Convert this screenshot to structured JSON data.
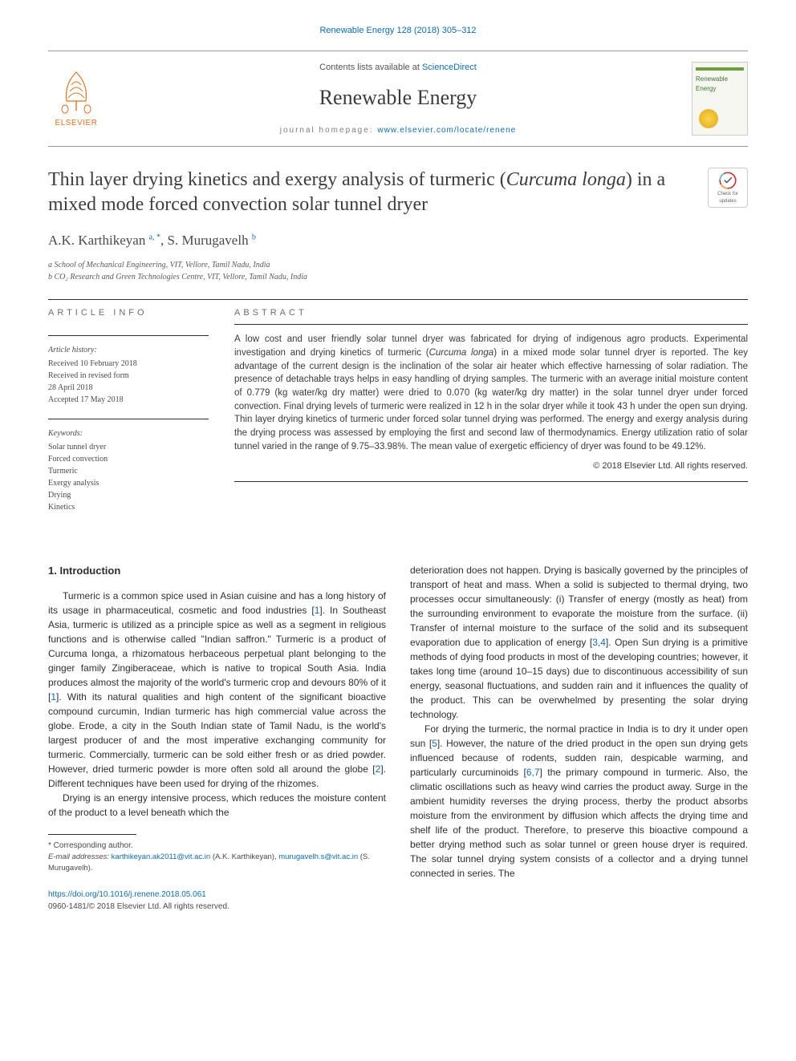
{
  "typography": {
    "body_font": "Georgia, 'Times New Roman', serif",
    "sans_font": "Arial, sans-serif",
    "title_fontsize_pt": 24,
    "journal_fontsize_pt": 26,
    "abstract_fontsize_pt": 11.5,
    "body_fontsize_pt": 12
  },
  "colors": {
    "link": "#0b6db7",
    "text": "#2e2e2e",
    "muted": "#6d6d6d",
    "publisher_orange": "#e8711c",
    "divider": "#2e2e2e",
    "background": "#ffffff"
  },
  "citation": "Renewable Energy 128 (2018) 305–312",
  "header": {
    "contents_text": "Contents lists available at ",
    "contents_link": "ScienceDirect",
    "journal": "Renewable Energy",
    "homepage_label": "journal homepage: ",
    "homepage_url": "www.elsevier.com/locate/renene",
    "publisher": "ELSEVIER",
    "cover_title": "Renewable Energy"
  },
  "crossmark": {
    "line1": "Check for",
    "line2": "updates"
  },
  "article": {
    "title_part1": "Thin layer drying kinetics and exergy analysis of turmeric (",
    "title_italic": "Curcuma longa",
    "title_part2": ") in a mixed mode forced convection solar tunnel dryer",
    "authors_html": "A.K. Karthikeyan <sup>a, *</sup>, S. Murugavelh <sup>b</sup>",
    "affiliations": [
      "a School of Mechanical Engineering, VIT, Vellore, Tamil Nadu, India",
      "b CO₂ Research and Green Technologies Centre, VIT, Vellore, Tamil Nadu, India"
    ]
  },
  "info": {
    "heading": "ARTICLE INFO",
    "history_head": "Article history:",
    "history": [
      "Received 10 February 2018",
      "Received in revised form",
      "28 April 2018",
      "Accepted 17 May 2018"
    ],
    "keywords_head": "Keywords:",
    "keywords": [
      "Solar tunnel dryer",
      "Forced convection",
      "Turmeric",
      "Exergy analysis",
      "Drying",
      "Kinetics"
    ]
  },
  "abstract": {
    "heading": "ABSTRACT",
    "body_part1": "A low cost and user friendly solar tunnel dryer was fabricated for drying of indigenous agro products. Experimental investigation and drying kinetics of turmeric (",
    "body_italic": "Curcuma longa",
    "body_part2": ") in a mixed mode solar tunnel dryer is reported. The key advantage of the current design is the inclination of the solar air heater which effective harnessing of solar radiation. The presence of detachable trays helps in easy handling of drying samples. The turmeric with an average initial moisture content of 0.779 (kg water/kg dry matter) were dried to 0.070 (kg water/kg dry matter) in the solar tunnel dryer under forced convection. Final drying levels of turmeric were realized in 12 h in the solar dryer while it took 43 h under the open sun drying. Thin layer drying kinetics of turmeric under forced solar tunnel drying was performed. The energy and exergy analysis during the drying process was assessed by employing the first and second law of thermodynamics. Energy utilization ratio of solar tunnel varied in the range of 9.75–33.98%. The mean value of exergetic efficiency of dryer was found to be 49.12%.",
    "copyright": "© 2018 Elsevier Ltd. All rights reserved."
  },
  "body": {
    "section_number": "1.",
    "section_title": "Introduction",
    "col1_p1": "Turmeric is a common spice used in Asian cuisine and has a long history of its usage in pharmaceutical, cosmetic and food industries [1]. In Southeast Asia, turmeric is utilized as a principle spice as well as a segment in religious functions and is otherwise called \"Indian saffron.\" Turmeric is a product of Curcuma longa, a rhizomatous herbaceous perpetual plant belonging to the ginger family Zingiberaceae, which is native to tropical South Asia. India produces almost the majority of the world's turmeric crop and devours 80% of it [1]. With its natural qualities and high content of the significant bioactive compound curcumin, Indian turmeric has high commercial value across the globe. Erode, a city in the South Indian state of Tamil Nadu, is the world's largest producer of and the most imperative exchanging community for turmeric. Commercially, turmeric can be sold either fresh or as dried powder. However, dried turmeric powder is more often sold all around the globe [2]. Different techniques have been used for drying of the rhizomes.",
    "col1_p2": "Drying is an energy intensive process, which reduces the moisture content of the product to a level beneath which the",
    "col2_p1": "deterioration does not happen. Drying is basically governed by the principles of transport of heat and mass. When a solid is subjected to thermal drying, two processes occur simultaneously: (i) Transfer of energy (mostly as heat) from the surrounding environment to evaporate the moisture from the surface. (ii) Transfer of internal moisture to the surface of the solid and its subsequent evaporation due to application of energy [3,4]. Open Sun drying is a primitive methods of dying food products in most of the developing countries; however, it takes long time (around 10–15 days) due to discontinuous accessibility of sun energy, seasonal fluctuations, and sudden rain and it influences the quality of the product. This can be overwhelmed by presenting the solar drying technology.",
    "col2_p2": "For drying the turmeric, the normal practice in India is to dry it under open sun [5]. However, the nature of the dried product in the open sun drying gets influenced because of rodents, sudden rain, despicable warming, and particularly curcuminoids [6,7] the primary compound in turmeric. Also, the climatic oscillations such as heavy wind carries the product away. Surge in the ambient humidity reverses the drying process, therby the product absorbs moisture from the environment by diffusion which affects the drying time and shelf life of the product. Therefore, to preserve this bioactive compound a better drying method such as solar tunnel or green house dryer is required. The solar tunnel drying system consists of a collector and a drying tunnel connected in series. The",
    "ref_links": [
      "1",
      "1",
      "2",
      "3",
      "4",
      "5",
      "6",
      "7"
    ]
  },
  "footnotes": {
    "corresponding": "* Corresponding author.",
    "email_label": "E-mail addresses: ",
    "email1": "karthikeyan.ak2011@vit.ac.in",
    "email1_name": " (A.K. Karthikeyan), ",
    "email2": "murugavelh.s@vit.ac.in",
    "email2_name": " (S. Murugavelh)."
  },
  "doi": {
    "url": "https://doi.org/10.1016/j.renene.2018.05.061",
    "issn_line": "0960-1481/© 2018 Elsevier Ltd. All rights reserved."
  }
}
